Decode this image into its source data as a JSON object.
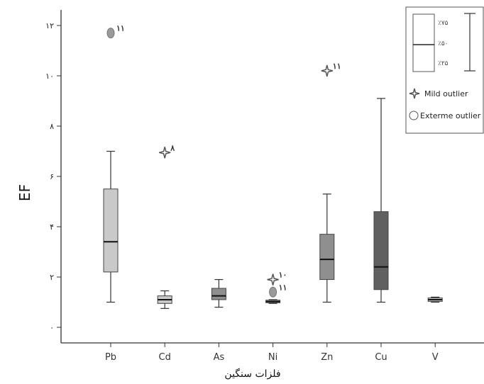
{
  "chart_data": {
    "type": "boxplot",
    "ylabel": "EF",
    "xlabel": "فلزات سنگین",
    "ylim": [
      -0.5,
      12.8
    ],
    "y_ticks": [
      {
        "value": 0,
        "label": "۰"
      },
      {
        "value": 2,
        "label": "۲"
      },
      {
        "value": 4,
        "label": "۴"
      },
      {
        "value": 6,
        "label": "۶"
      },
      {
        "value": 8,
        "label": "۸"
      },
      {
        "value": 10,
        "label": "۱۰"
      },
      {
        "value": 12,
        "label": "۱۲"
      }
    ],
    "categories": [
      "Pb",
      "Cd",
      "As",
      "Ni",
      "Zn",
      "Cu",
      "V"
    ],
    "boxes": [
      {
        "category": "Pb",
        "color": "#c9c9c9",
        "whisker_low": 1.0,
        "q1": 2.2,
        "median": 3.4,
        "q3": 5.5,
        "whisker_high": 7.0
      },
      {
        "category": "Cd",
        "color": "#c9c9c9",
        "whisker_low": 0.75,
        "q1": 0.95,
        "median": 1.1,
        "q3": 1.25,
        "whisker_high": 1.45
      },
      {
        "category": "As",
        "color": "#8f8f8f",
        "whisker_low": 0.8,
        "q1": 1.1,
        "median": 1.25,
        "q3": 1.55,
        "whisker_high": 1.9
      },
      {
        "category": "Ni",
        "color": "#8f8f8f",
        "whisker_low": 0.95,
        "q1": 0.98,
        "median": 1.02,
        "q3": 1.08,
        "whisker_high": 1.1
      },
      {
        "category": "Zn",
        "color": "#8f8f8f",
        "whisker_low": 1.0,
        "q1": 1.9,
        "median": 2.7,
        "q3": 3.7,
        "whisker_high": 5.3
      },
      {
        "category": "Cu",
        "color": "#606060",
        "whisker_low": 1.0,
        "q1": 1.5,
        "median": 2.4,
        "q3": 4.6,
        "whisker_high": 9.1
      },
      {
        "category": "V",
        "color": "#c9c9c9",
        "whisker_low": 1.0,
        "q1": 1.03,
        "median": 1.1,
        "q3": 1.17,
        "whisker_high": 1.2
      }
    ],
    "outliers": [
      {
        "category": "Pb",
        "value": 11.7,
        "kind": "extreme",
        "label": "۱۱"
      },
      {
        "category": "Cd",
        "value": 6.95,
        "kind": "mild",
        "label": "۸"
      },
      {
        "category": "Ni",
        "value": 1.9,
        "kind": "mild",
        "label": "۱۰"
      },
      {
        "category": "Ni",
        "value": 1.4,
        "kind": "extreme",
        "label": "۱۱"
      },
      {
        "category": "Zn",
        "value": 10.2,
        "kind": "mild",
        "label": "۱۱"
      }
    ],
    "legend": {
      "position": "top-right",
      "percentiles": [
        "٪۷۵",
        "٪۵۰",
        "٪۲۵"
      ],
      "mild_label": "Mild outlier",
      "extreme_label": "Exterme outlier"
    }
  }
}
